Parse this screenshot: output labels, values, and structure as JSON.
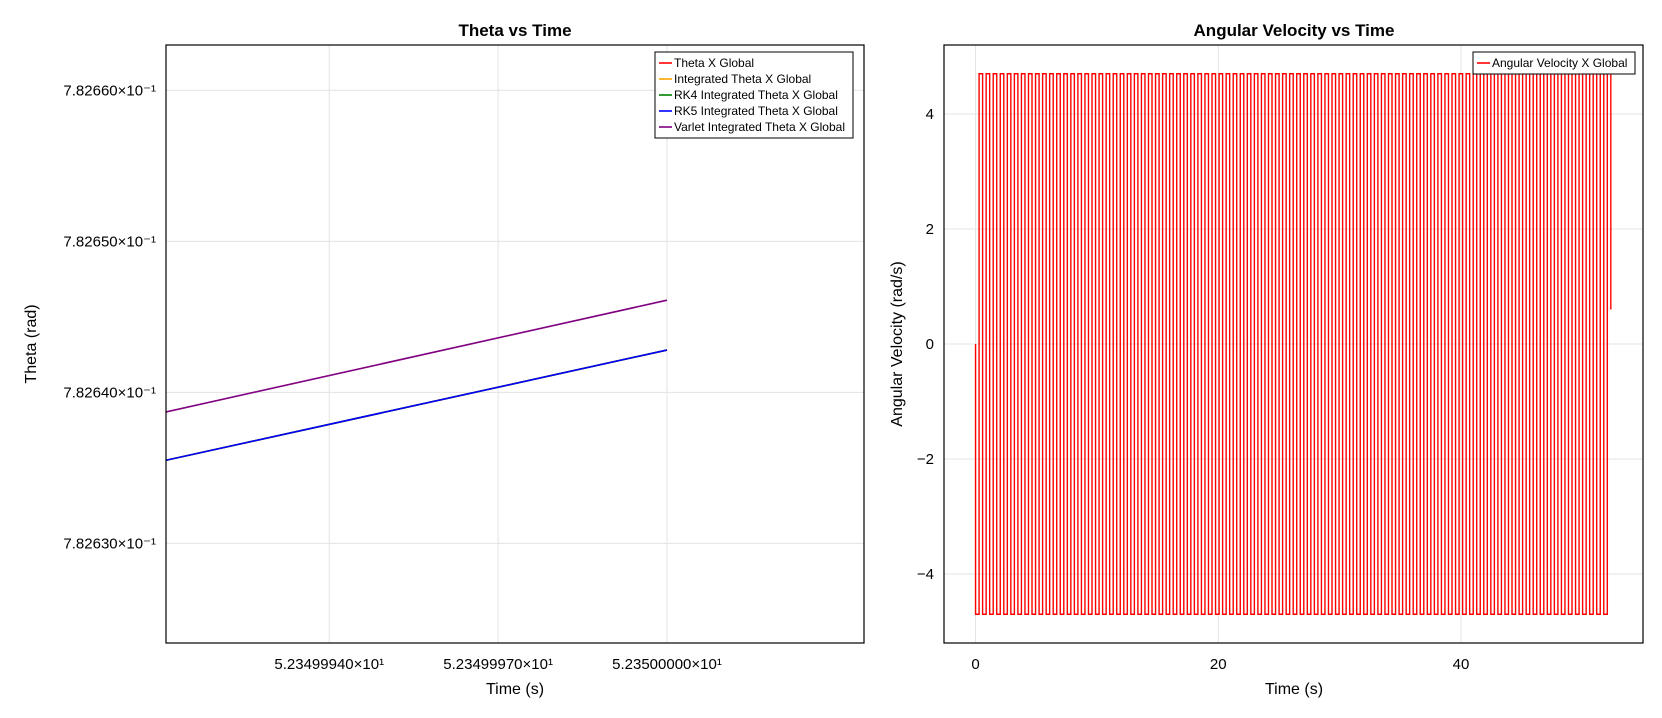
{
  "chart_data": [
    {
      "type": "line",
      "title": "Theta vs Time",
      "xlabel": "Time (s)",
      "ylabel": "Theta (rad)",
      "xlim": [
        52.3499911,
        52.3500035
      ],
      "ylim": [
        0.7826234,
        0.782663
      ],
      "x_ticks": [
        {
          "value": 52.349994,
          "label": "5.23499940×10¹"
        },
        {
          "value": 52.349997,
          "label": "5.23499970×10¹"
        },
        {
          "value": 52.35,
          "label": "5.23500000×10¹"
        }
      ],
      "y_ticks": [
        {
          "value": 0.78263,
          "label": "7.82630×10⁻¹"
        },
        {
          "value": 0.78264,
          "label": "7.82640×10⁻¹"
        },
        {
          "value": 0.78265,
          "label": "7.82650×10⁻¹"
        },
        {
          "value": 0.78266,
          "label": "7.82660×10⁻¹"
        }
      ],
      "grid": true,
      "legend_position": "top-right",
      "series": [
        {
          "name": "Theta X Global",
          "color": "#ff0000",
          "x": [
            52.3499911,
            52.35
          ],
          "y": [
            0.7826355,
            0.7826428
          ]
        },
        {
          "name": "Integrated Theta X Global",
          "color": "#ffa500",
          "x": [
            52.3499911,
            52.35
          ],
          "y": [
            0.7826355,
            0.7826428
          ]
        },
        {
          "name": "RK4 Integrated Theta X Global",
          "color": "#008000",
          "x": [
            52.3499911,
            52.35
          ],
          "y": [
            0.7826355,
            0.7826428
          ]
        },
        {
          "name": "RK5 Integrated Theta X Global",
          "color": "#0000ff",
          "x": [
            52.3499911,
            52.35
          ],
          "y": [
            0.7826355,
            0.7826428
          ]
        },
        {
          "name": "Varlet Integrated Theta X Global",
          "color": "#800080",
          "x": [
            52.3499911,
            52.35
          ],
          "y": [
            0.7826387,
            0.7826461
          ]
        }
      ]
    },
    {
      "type": "line",
      "title": "Angular Velocity vs Time",
      "xlabel": "Time (s)",
      "ylabel": "Angular Velocity (rad/s)",
      "xlim": [
        -2.6,
        55.0
      ],
      "ylim": [
        -5.2,
        5.2
      ],
      "x_ticks": [
        {
          "value": 0,
          "label": "0"
        },
        {
          "value": 20,
          "label": "20"
        },
        {
          "value": 40,
          "label": "40"
        }
      ],
      "y_ticks": [
        {
          "value": -4,
          "label": "−4"
        },
        {
          "value": -2,
          "label": "−2"
        },
        {
          "value": 0,
          "label": "0"
        },
        {
          "value": 2,
          "label": "2"
        },
        {
          "value": 4,
          "label": "4"
        }
      ],
      "grid": true,
      "legend_position": "top-right",
      "series": [
        {
          "name": "Angular Velocity X Global",
          "color": "#ff0000",
          "signal": {
            "form": "square-wave",
            "amplitude": 4.7,
            "t_start": 0,
            "t_end": 52.35,
            "cycles": 90,
            "initial_value": 0,
            "final_value": 0.6
          }
        }
      ]
    }
  ]
}
